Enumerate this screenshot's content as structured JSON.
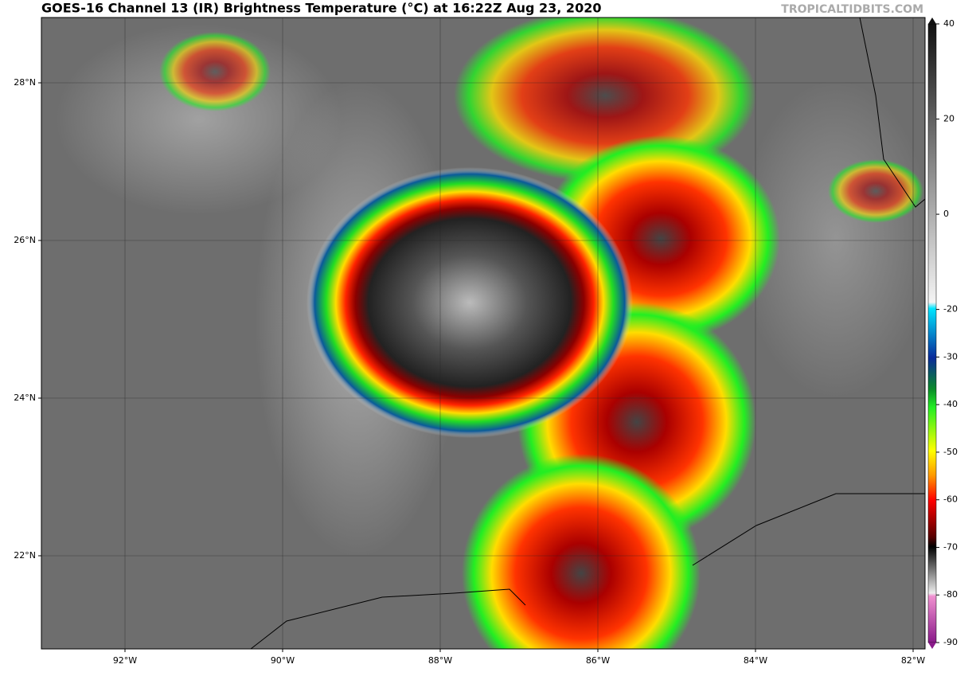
{
  "header": {
    "title": "GOES-16 Channel 13 (IR) Brightness Temperature (°C) at 16:22Z Aug 23, 2020",
    "source": "TROPICALTIDBITS.COM"
  },
  "map": {
    "lat_labels": [
      "28°N",
      "26°N",
      "24°N",
      "22°N"
    ],
    "lon_labels": [
      "92°W",
      "90°W",
      "88°W",
      "86°W",
      "84°W",
      "82°W"
    ]
  },
  "colorbar": {
    "lim": [
      -90,
      40
    ],
    "ticks": [
      40,
      20,
      0,
      -20,
      -30,
      -40,
      -50,
      -60,
      -70,
      -80,
      -90
    ]
  }
}
